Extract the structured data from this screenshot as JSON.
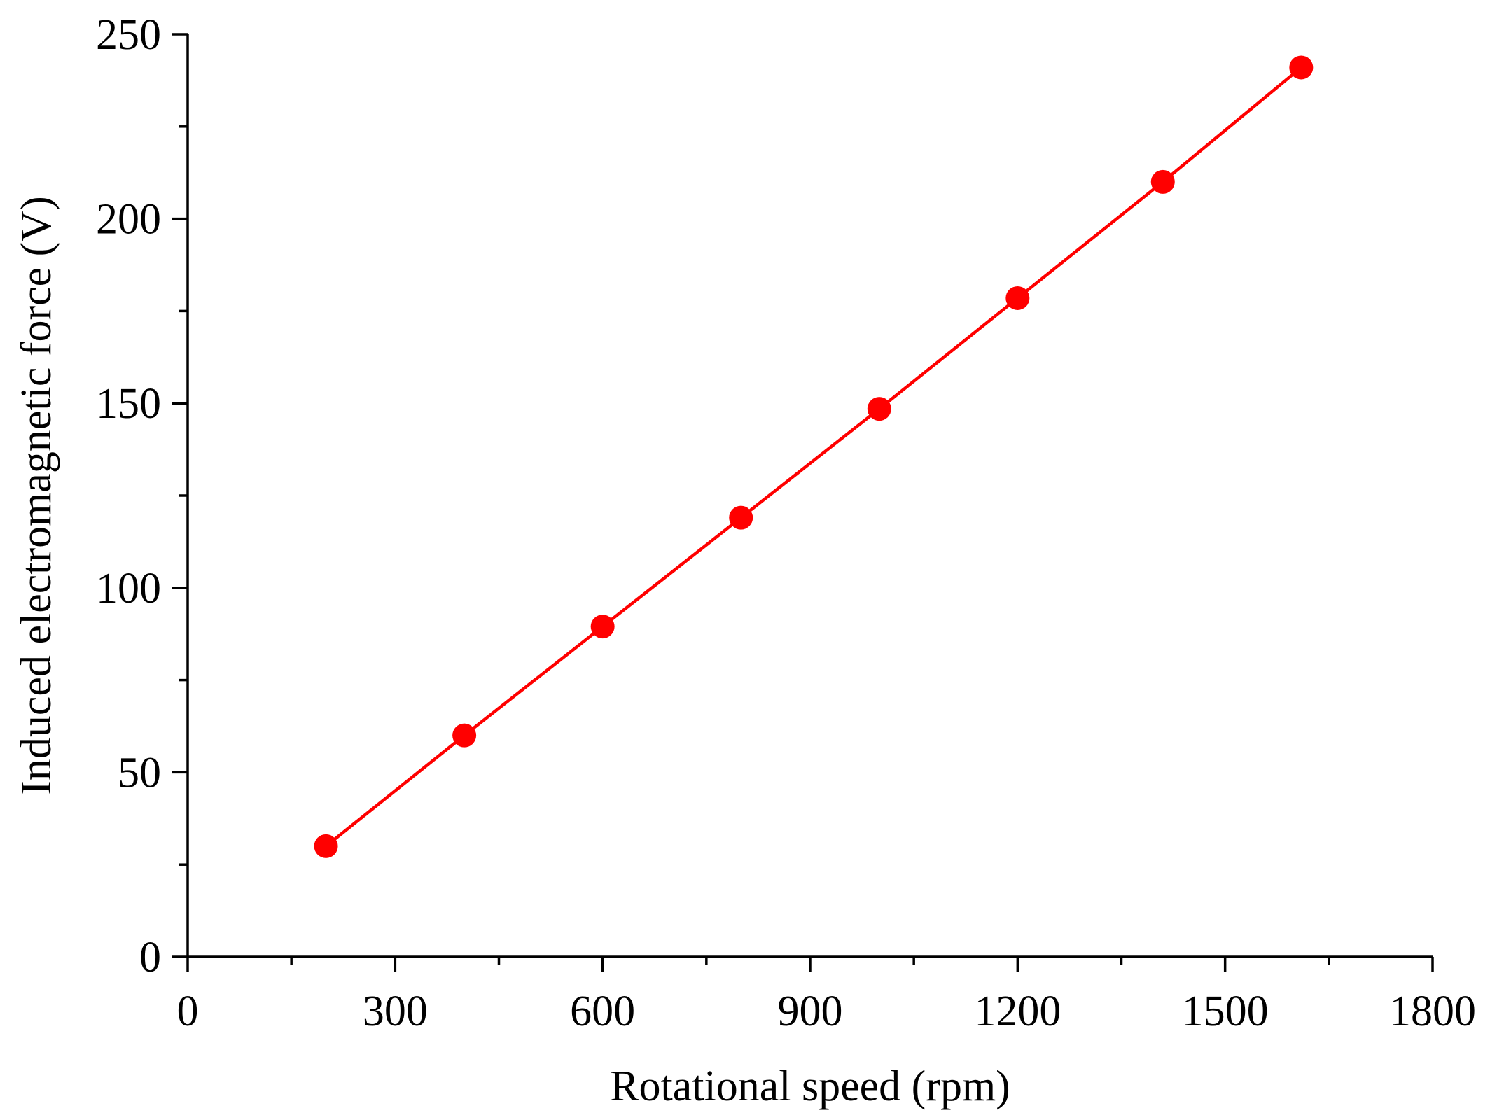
{
  "chart_data": {
    "type": "line",
    "title": "",
    "xlabel": "Rotational speed (rpm)",
    "ylabel": "Induced electromagnetic force (V)",
    "xlim": [
      0,
      1800
    ],
    "ylim": [
      0,
      250
    ],
    "x_ticks": [
      0,
      300,
      600,
      900,
      1200,
      1500,
      1800
    ],
    "y_ticks": [
      0,
      50,
      100,
      150,
      200,
      250
    ],
    "x_tick_labels": [
      "0",
      "300",
      "600",
      "900",
      "1200",
      "1500",
      "1800"
    ],
    "y_tick_labels": [
      "0",
      "50",
      "100",
      "150",
      "200",
      "250"
    ],
    "x_minor_step": 150,
    "y_minor_step": 25,
    "grid": false,
    "legend": "none",
    "colors": {
      "series": "#ff0000",
      "axes": "#000000"
    },
    "series": [
      {
        "x": [
          200,
          400,
          600,
          800,
          1000,
          1200,
          1410,
          1610
        ],
        "values": [
          30,
          60,
          89.5,
          119,
          148.5,
          178.5,
          210,
          241
        ],
        "marker": "circle"
      }
    ]
  }
}
